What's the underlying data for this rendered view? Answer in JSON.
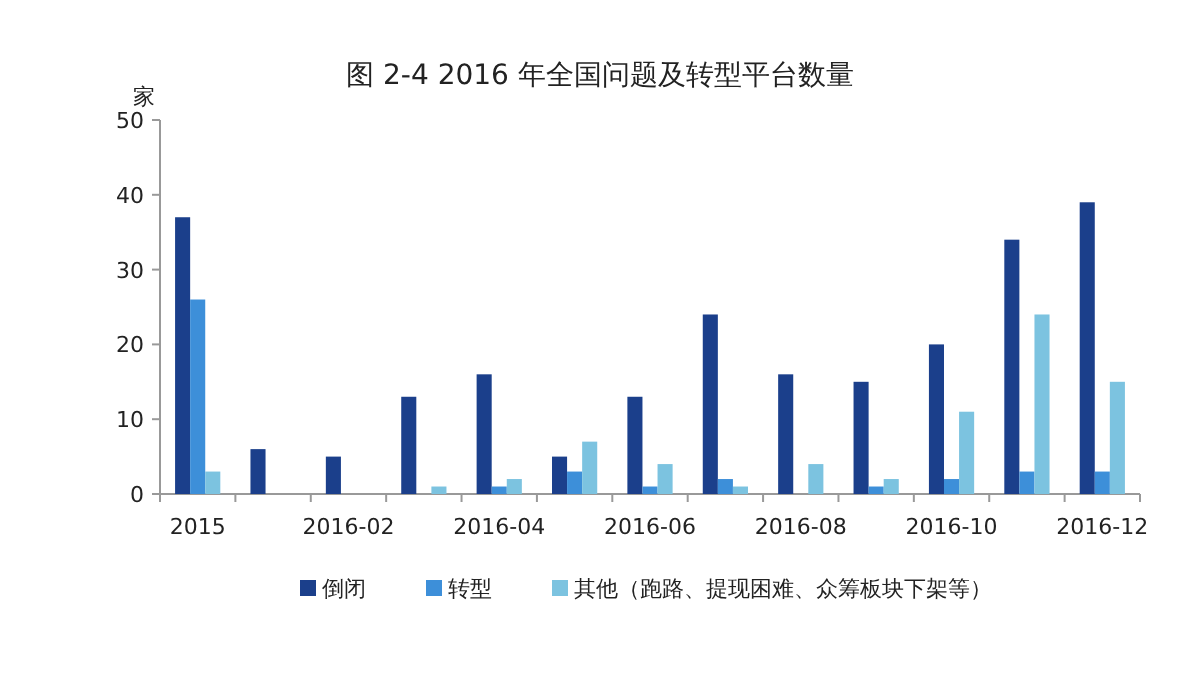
{
  "chart_data": {
    "type": "bar",
    "title": "图 2-4 2016 年全国问题及转型平台数量",
    "ylabel": "家",
    "categories": [
      "2015",
      null,
      "2016-02",
      null,
      "2016-04",
      null,
      "2016-06",
      null,
      "2016-08",
      null,
      "2016-10",
      null,
      "2016-12"
    ],
    "series": [
      {
        "name": "倒闭",
        "color": "#1b3f8b",
        "values": [
          37,
          6,
          5,
          13,
          16,
          5,
          13,
          24,
          16,
          15,
          20,
          34,
          39
        ]
      },
      {
        "name": "转型",
        "color": "#3d8fd9",
        "values": [
          26,
          0,
          0,
          0,
          1,
          3,
          1,
          2,
          0,
          1,
          2,
          3,
          3
        ]
      },
      {
        "name": "其他（跑路、提现困难、众筹板块下架等）",
        "color": "#7cc3e0",
        "values": [
          3,
          0,
          0,
          1,
          2,
          7,
          4,
          1,
          4,
          2,
          11,
          24,
          15
        ]
      }
    ],
    "ylim": [
      0,
      50
    ],
    "yticks": [
      0,
      10,
      20,
      30,
      40,
      50
    ],
    "legend": "bottom"
  }
}
